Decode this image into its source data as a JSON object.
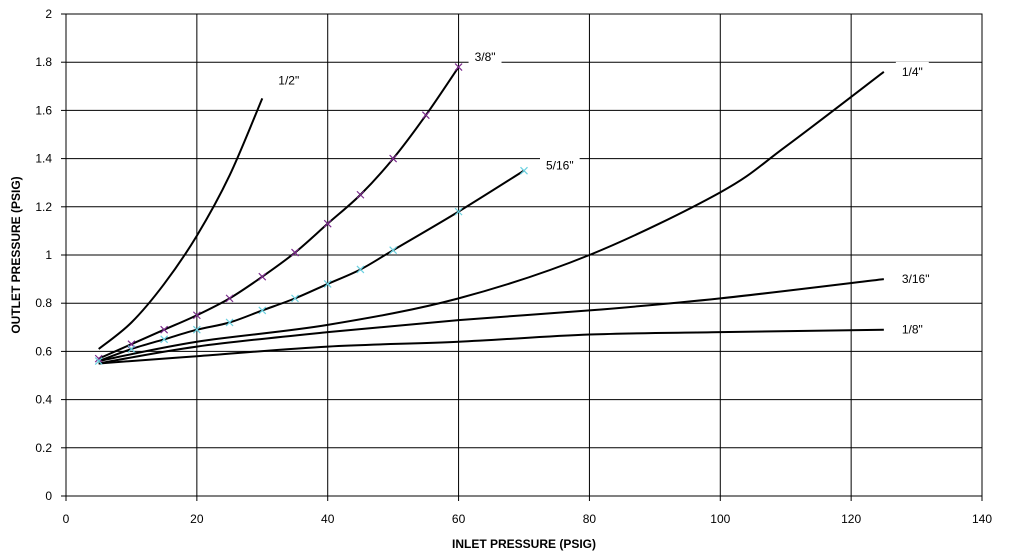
{
  "chart_data": {
    "type": "line",
    "xlabel": "INLET PRESSURE (PSIG)",
    "ylabel": "OUTLET PRESSURE (PSIG)",
    "xlim": [
      0,
      140
    ],
    "ylim": [
      0,
      2
    ],
    "xticks": [
      0,
      20,
      40,
      60,
      80,
      100,
      120,
      140
    ],
    "yticks": [
      0,
      0.2,
      0.4,
      0.6,
      0.8,
      1,
      1.2,
      1.4,
      1.6,
      1.8,
      2
    ],
    "xtick_labels": [
      "0",
      "20",
      "40",
      "60",
      "80",
      "100",
      "120",
      "140"
    ],
    "ytick_labels": [
      "0",
      "0.2",
      "0.4",
      "0.6",
      "0.8",
      "1",
      "1.2",
      "1.4",
      "1.6",
      "1.8",
      "2"
    ],
    "grid": true,
    "legend": "none (labels at curve ends)",
    "series": [
      {
        "name": "1/2\"",
        "x": [
          5,
          10,
          15,
          20,
          25,
          30
        ],
        "y": [
          0.61,
          0.72,
          0.88,
          1.08,
          1.33,
          1.65
        ]
      },
      {
        "name": "3/8\"",
        "x": [
          5,
          10,
          15,
          20,
          25,
          30,
          35,
          40,
          45,
          50,
          55,
          60
        ],
        "y": [
          0.57,
          0.63,
          0.69,
          0.75,
          0.82,
          0.91,
          1.01,
          1.13,
          1.25,
          1.4,
          1.58,
          1.78
        ],
        "markers": "x",
        "marker_color": "#7b2a8c"
      },
      {
        "name": "5/16\"",
        "x": [
          5,
          10,
          15,
          20,
          25,
          30,
          35,
          40,
          45,
          50,
          60,
          70
        ],
        "y": [
          0.56,
          0.61,
          0.65,
          0.69,
          0.72,
          0.77,
          0.82,
          0.88,
          0.94,
          1.02,
          1.18,
          1.35
        ],
        "markers": "x",
        "marker_color": "#6ad0e0"
      },
      {
        "name": "1/4\"",
        "x": [
          5,
          20,
          40,
          60,
          80,
          100,
          110,
          125
        ],
        "y": [
          0.56,
          0.64,
          0.71,
          0.82,
          1.0,
          1.26,
          1.45,
          1.76
        ]
      },
      {
        "name": "3/16\"",
        "x": [
          5,
          20,
          40,
          60,
          80,
          100,
          125
        ],
        "y": [
          0.55,
          0.62,
          0.68,
          0.73,
          0.77,
          0.82,
          0.9
        ]
      },
      {
        "name": "1/8\"",
        "x": [
          5,
          20,
          40,
          60,
          80,
          100,
          125
        ],
        "y": [
          0.55,
          0.58,
          0.62,
          0.64,
          0.67,
          0.68,
          0.69
        ]
      }
    ]
  }
}
